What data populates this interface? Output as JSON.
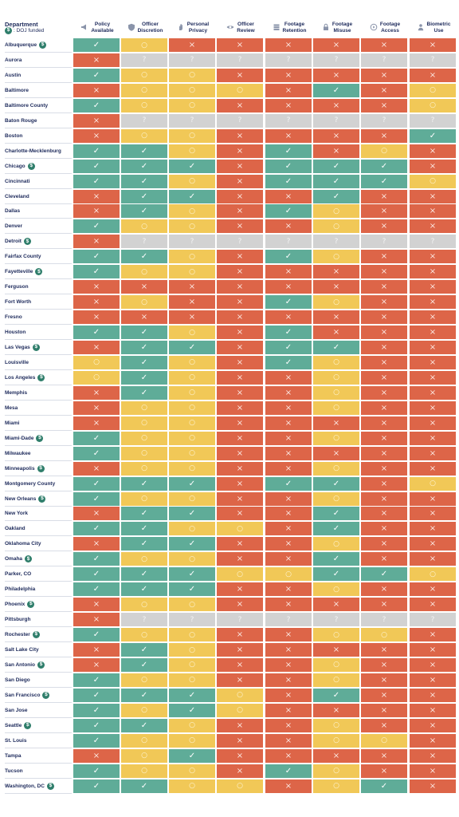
{
  "chart_data": {
    "type": "table",
    "header_label": "Department",
    "legend": {
      "symbol": "$",
      "text": ": DOJ funded"
    },
    "columns": [
      {
        "label": "Policy\nAvailable",
        "icon": "megaphone-icon"
      },
      {
        "label": "Officer\nDiscretion",
        "icon": "shield-icon"
      },
      {
        "label": "Personal\nPrivacy",
        "icon": "hand-icon"
      },
      {
        "label": "Officer\nReview",
        "icon": "eye-icon"
      },
      {
        "label": "Footage\nRetention",
        "icon": "database-icon"
      },
      {
        "label": "Footage\nMisuse",
        "icon": "lock-icon"
      },
      {
        "label": "Footage\nAccess",
        "icon": "play-icon"
      },
      {
        "label": "Biometric\nUse",
        "icon": "person-icon"
      }
    ],
    "status_key": {
      "G": "met",
      "Y": "partial",
      "R": "fail",
      "N": "na"
    },
    "status_colors": {
      "G": "#5fac98",
      "Y": "#f1c857",
      "R": "#dd6548",
      "N": "#d2d2d2"
    },
    "status_glyphs": {
      "G": "✓",
      "Y": "○",
      "R": "×",
      "N": "?"
    },
    "rows": [
      {
        "dept": "Albuquerque",
        "doj": true,
        "scores": "GYRRRRRR"
      },
      {
        "dept": "Aurora",
        "doj": false,
        "scores": "RNNNNNNN"
      },
      {
        "dept": "Austin",
        "doj": false,
        "scores": "GYYRRRRR"
      },
      {
        "dept": "Baltimore",
        "doj": false,
        "scores": "RYYYRGRY"
      },
      {
        "dept": "Baltimore County",
        "doj": false,
        "scores": "GYYRRRRY"
      },
      {
        "dept": "Baton Rouge",
        "doj": false,
        "scores": "RNNNNNNN"
      },
      {
        "dept": "Boston",
        "doj": false,
        "scores": "RYYRRRRG"
      },
      {
        "dept": "Charlotte-Mecklenburg",
        "doj": false,
        "scores": "GGYRGRYR"
      },
      {
        "dept": "Chicago",
        "doj": true,
        "scores": "GGGRGGGR"
      },
      {
        "dept": "Cincinnati",
        "doj": false,
        "scores": "GGYRGGGY"
      },
      {
        "dept": "Cleveland",
        "doj": false,
        "scores": "RGGRRGRR"
      },
      {
        "dept": "Dallas",
        "doj": false,
        "scores": "RGYRGYRR"
      },
      {
        "dept": "Denver",
        "doj": false,
        "scores": "GYYRRYRR"
      },
      {
        "dept": "Detroit",
        "doj": true,
        "scores": "RNNNNNNN"
      },
      {
        "dept": "Fairfax County",
        "doj": false,
        "scores": "GGYRGYRR"
      },
      {
        "dept": "Fayetteville",
        "doj": true,
        "scores": "GYYRRRRR"
      },
      {
        "dept": "Ferguson",
        "doj": false,
        "scores": "RRRRRRRR"
      },
      {
        "dept": "Fort Worth",
        "doj": false,
        "scores": "RYRRGYRR"
      },
      {
        "dept": "Fresno",
        "doj": false,
        "scores": "RRRRRRRR"
      },
      {
        "dept": "Houston",
        "doj": false,
        "scores": "GGYRGRRR"
      },
      {
        "dept": "Las Vegas",
        "doj": true,
        "scores": "RGGRGGRR"
      },
      {
        "dept": "Louisville",
        "doj": false,
        "scores": "YGYRGYRR"
      },
      {
        "dept": "Los Angeles",
        "doj": true,
        "scores": "YGYRRYRR"
      },
      {
        "dept": "Memphis",
        "doj": false,
        "scores": "RGYRRYRR"
      },
      {
        "dept": "Mesa",
        "doj": false,
        "scores": "RYYRRYRR"
      },
      {
        "dept": "Miami",
        "doj": false,
        "scores": "RYYRRRRR"
      },
      {
        "dept": "Miami-Dade",
        "doj": true,
        "scores": "GYYRRYRR"
      },
      {
        "dept": "Milwaukee",
        "doj": false,
        "scores": "GYYRRRRR"
      },
      {
        "dept": "Minneapolis",
        "doj": true,
        "scores": "RYYRRYRR"
      },
      {
        "dept": "Montgomery County",
        "doj": false,
        "scores": "GGGRGGRY"
      },
      {
        "dept": "New Orleans",
        "doj": true,
        "scores": "GYYRRYRR"
      },
      {
        "dept": "New York",
        "doj": false,
        "scores": "RGGRRGRR"
      },
      {
        "dept": "Oakland",
        "doj": false,
        "scores": "GGYYRGRR"
      },
      {
        "dept": "Oklahoma City",
        "doj": false,
        "scores": "RGGRRYRR"
      },
      {
        "dept": "Omaha",
        "doj": true,
        "scores": "GYYRRGRR"
      },
      {
        "dept": "Parker, CO",
        "doj": false,
        "scores": "GGGYYGGY"
      },
      {
        "dept": "Philadelphia",
        "doj": false,
        "scores": "GGGRRYRR"
      },
      {
        "dept": "Phoenix",
        "doj": true,
        "scores": "RYYRRRRR"
      },
      {
        "dept": "Pittsburgh",
        "doj": false,
        "scores": "RNNNNNNN"
      },
      {
        "dept": "Rochester",
        "doj": true,
        "scores": "GYYRRYYR"
      },
      {
        "dept": "Salt Lake City",
        "doj": false,
        "scores": "RGYRRRRR"
      },
      {
        "dept": "San Antonio",
        "doj": true,
        "scores": "RGYRRYRR"
      },
      {
        "dept": "San Diego",
        "doj": false,
        "scores": "GYYRRYRR"
      },
      {
        "dept": "San Francisco",
        "doj": true,
        "scores": "GGGYRGRR"
      },
      {
        "dept": "San Jose",
        "doj": false,
        "scores": "GYGYRRRR"
      },
      {
        "dept": "Seattle",
        "doj": true,
        "scores": "GGYRRYRR"
      },
      {
        "dept": "St. Louis",
        "doj": false,
        "scores": "GYYRRYYR"
      },
      {
        "dept": "Tampa",
        "doj": false,
        "scores": "RYGRRRRR"
      },
      {
        "dept": "Tucson",
        "doj": false,
        "scores": "GYYRGYRR"
      },
      {
        "dept": "Washington, DC",
        "doj": true,
        "scores": "GGYYRYGR"
      }
    ]
  }
}
